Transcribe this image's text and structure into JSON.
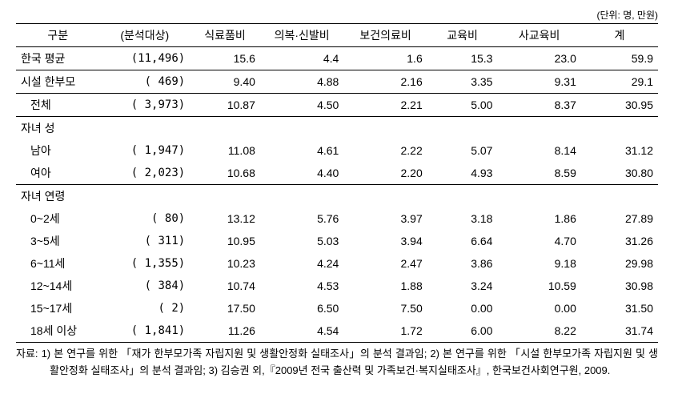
{
  "unit_label": "(단위: 명, 만원)",
  "columns": [
    "구분",
    "(분석대상)",
    "식료품비",
    "의복·신발비",
    "보건의료비",
    "교육비",
    "사교육비",
    "계"
  ],
  "rows": {
    "korea_avg": {
      "label": "한국 평균",
      "analysis": "(11,496)",
      "v1": "15.6",
      "v2": "4.4",
      "v3": "1.6",
      "v4": "15.3",
      "v5": "23.0",
      "v6": "59.9"
    },
    "facility": {
      "label": "시설 한부모",
      "analysis": "(   469)",
      "v1": "9.40",
      "v2": "4.88",
      "v3": "2.16",
      "v4": "3.35",
      "v5": "9.31",
      "v6": "29.1"
    },
    "total": {
      "label": "전체",
      "analysis": "( 3,973)",
      "v1": "10.87",
      "v2": "4.50",
      "v3": "2.21",
      "v4": "5.00",
      "v5": "8.37",
      "v6": "30.95"
    },
    "gender_header": "자녀 성",
    "male": {
      "label": "남아",
      "analysis": "( 1,947)",
      "v1": "11.08",
      "v2": "4.61",
      "v3": "2.22",
      "v4": "5.07",
      "v5": "8.14",
      "v6": "31.12"
    },
    "female": {
      "label": "여아",
      "analysis": "( 2,023)",
      "v1": "10.68",
      "v2": "4.40",
      "v3": "2.20",
      "v4": "4.93",
      "v5": "8.59",
      "v6": "30.80"
    },
    "age_header": "자녀 연령",
    "age0_2": {
      "label": "0~2세",
      "analysis": "(     80)",
      "v1": "13.12",
      "v2": "5.76",
      "v3": "3.97",
      "v4": "3.18",
      "v5": "1.86",
      "v6": "27.89"
    },
    "age3_5": {
      "label": "3~5세",
      "analysis": "(   311)",
      "v1": "10.95",
      "v2": "5.03",
      "v3": "3.94",
      "v4": "6.64",
      "v5": "4.70",
      "v6": "31.26"
    },
    "age6_11": {
      "label": "6~11세",
      "analysis": "( 1,355)",
      "v1": "10.23",
      "v2": "4.24",
      "v3": "2.47",
      "v4": "3.86",
      "v5": "9.18",
      "v6": "29.98"
    },
    "age12_14": {
      "label": "12~14세",
      "analysis": "(   384)",
      "v1": "10.74",
      "v2": "4.53",
      "v3": "1.88",
      "v4": "3.24",
      "v5": "10.59",
      "v6": "30.98"
    },
    "age15_17": {
      "label": "15~17세",
      "analysis": "(       2)",
      "v1": "17.50",
      "v2": "6.50",
      "v3": "7.50",
      "v4": "0.00",
      "v5": "0.00",
      "v6": "31.50"
    },
    "age18": {
      "label": "18세 이상",
      "analysis": "( 1,841)",
      "v1": "11.26",
      "v2": "4.54",
      "v3": "1.72",
      "v4": "6.00",
      "v5": "8.22",
      "v6": "31.74"
    }
  },
  "footnote": "자료: 1) 본 연구를 위한 「재가 한부모가족 자립지원 및 생활안정화 실태조사」의 분석 결과임; 2) 본 연구를 위한 「시설 한부모가족 자립지원 및 생활안정화 실태조사」의 분석 결과임; 3) 김승권 외,『2009년 전국 출산력 및 가족보건·복지실태조사』, 한국보건사회연구원, 2009."
}
